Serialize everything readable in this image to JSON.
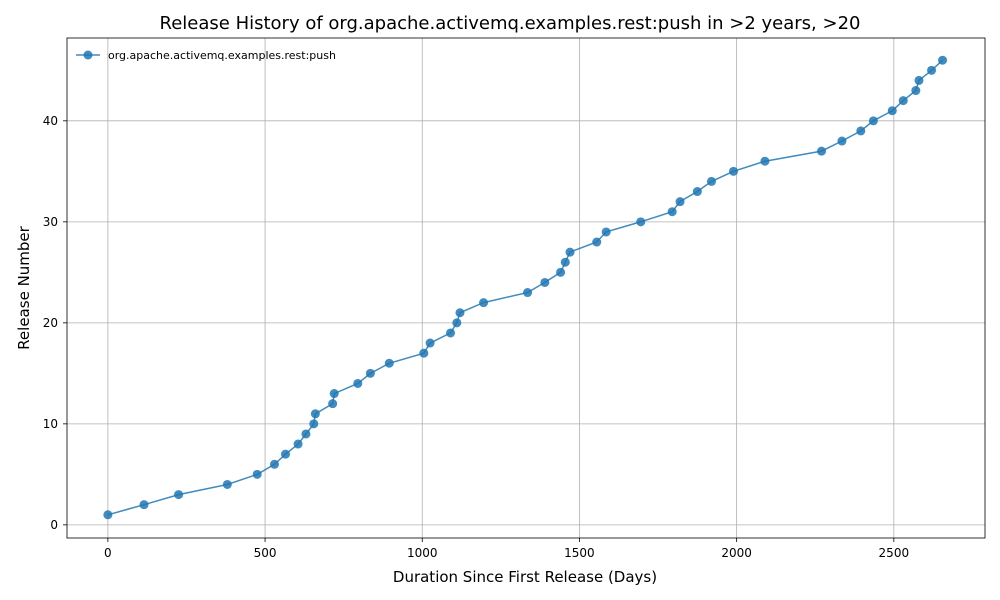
{
  "chart_data": {
    "type": "line",
    "title": "Release History of org.apache.activemq.examples.rest:push in >2 years, >20",
    "xlabel": "Duration Since First Release (Days)",
    "ylabel": "Release Number",
    "xlim": [
      -130,
      2790
    ],
    "ylim": [
      -1.3,
      48.2
    ],
    "xticks": [
      0,
      500,
      1000,
      1500,
      2000,
      2500
    ],
    "yticks": [
      0,
      10,
      20,
      30,
      40
    ],
    "grid": true,
    "legend_position": "upper-left",
    "color": "#1f77b4",
    "series": [
      {
        "name": "org.apache.activemq.examples.rest:push",
        "x": [
          0,
          115,
          225,
          380,
          475,
          530,
          565,
          605,
          630,
          655,
          660,
          715,
          720,
          795,
          835,
          895,
          1005,
          1025,
          1090,
          1110,
          1120,
          1195,
          1335,
          1390,
          1440,
          1455,
          1470,
          1555,
          1585,
          1695,
          1795,
          1820,
          1875,
          1920,
          1990,
          2090,
          2270,
          2335,
          2395,
          2435,
          2495,
          2530,
          2570,
          2580,
          2620,
          2655
        ],
        "y": [
          1,
          2,
          3,
          4,
          5,
          6,
          7,
          8,
          9,
          10,
          11,
          12,
          13,
          14,
          15,
          16,
          17,
          18,
          19,
          20,
          21,
          22,
          23,
          24,
          25,
          26,
          27,
          28,
          29,
          30,
          31,
          32,
          33,
          34,
          35,
          36,
          37,
          38,
          39,
          40,
          41,
          42,
          43,
          44,
          45,
          46
        ]
      }
    ]
  }
}
